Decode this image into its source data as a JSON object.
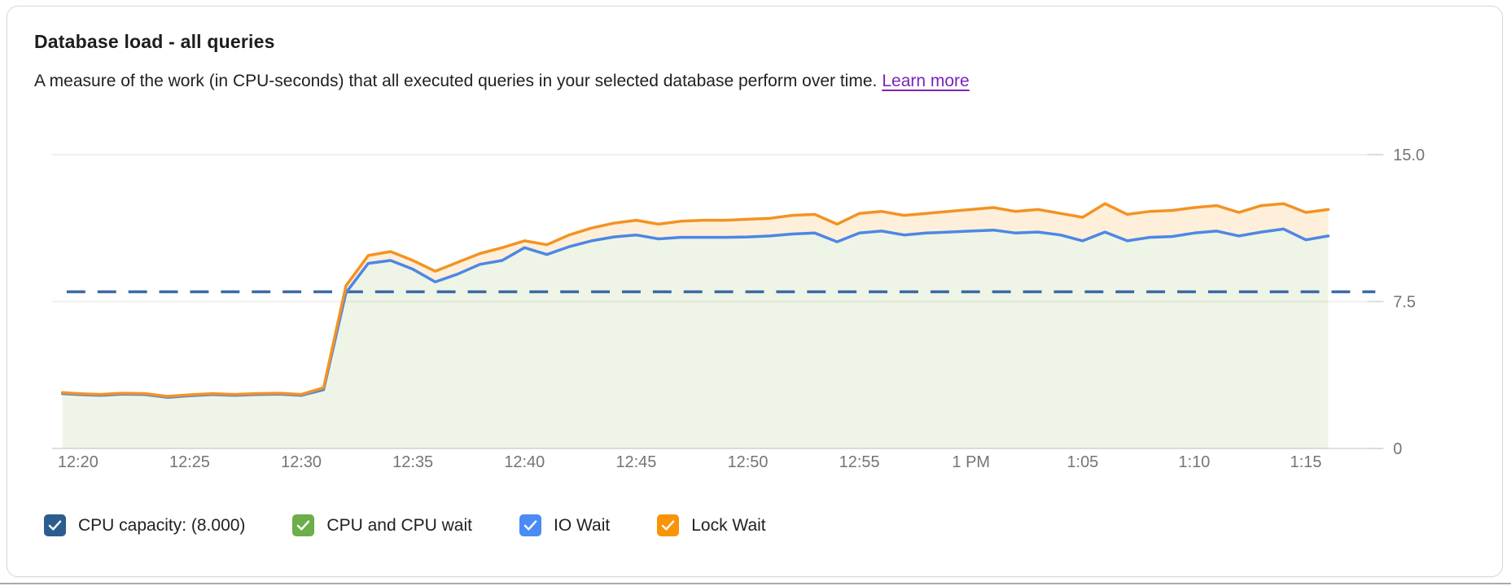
{
  "card": {
    "title": "Database load - all queries",
    "subtitle": "A measure of the work (in CPU-seconds) that all executed queries in your selected database perform over time.",
    "learn_more_label": "Learn more"
  },
  "colors": {
    "link_purple": "#7b24b8",
    "capacity_dash": "#3b69a5",
    "io_wait_line": "#4d87e4",
    "lock_wait_line": "#f39322",
    "cpu_area_fill": "rgba(124,179,66,0.13)",
    "lock_band_fill": "rgba(248,148,6,0.15)",
    "gridline": "#efefef",
    "baseline": "#e0e0e0",
    "tick_mark": "#dcdcdc",
    "axis_text": "#757575"
  },
  "legend": {
    "items": [
      {
        "label": "CPU capacity: (8.000)",
        "color": "#2c5d8f"
      },
      {
        "label": "CPU and CPU wait",
        "color": "#6cae49"
      },
      {
        "label": "IO Wait",
        "color": "#4b8bf5"
      },
      {
        "label": "Lock Wait",
        "color": "#f89406"
      }
    ]
  },
  "chart_data": {
    "type": "area",
    "title": "Database load - all queries",
    "ylabel": "",
    "xlabel": "",
    "ylim": [
      0,
      15
    ],
    "grid": true,
    "legend_position": "bottom",
    "stacked_cumulative": true,
    "note": "Lines are cumulative stack tops; the green 'CPU and CPU wait' area top edge coincides with (is hidden under) the IO Wait line because IO wait is ~0.",
    "y_ticks": [
      {
        "label": "15.0",
        "value": 15
      },
      {
        "label": "7.5",
        "value": 7.5
      },
      {
        "label": "0",
        "value": 0
      }
    ],
    "x_ticks": [
      {
        "label": "12:20",
        "minute": 20
      },
      {
        "label": "12:25",
        "minute": 25
      },
      {
        "label": "12:30",
        "minute": 30
      },
      {
        "label": "12:35",
        "minute": 35
      },
      {
        "label": "12:40",
        "minute": 40
      },
      {
        "label": "12:45",
        "minute": 45
      },
      {
        "label": "12:50",
        "minute": 50
      },
      {
        "label": "12:55",
        "minute": 55
      },
      {
        "label": "1 PM",
        "minute": 60
      },
      {
        "label": "1:05",
        "minute": 65
      },
      {
        "label": "1:10",
        "minute": 70
      },
      {
        "label": "1:15",
        "minute": 75
      }
    ],
    "capacity_line": {
      "label": "CPU capacity",
      "value": 8.0,
      "style": "dashed"
    },
    "x_minutes": [
      19.3,
      20,
      21,
      22,
      23,
      24,
      25,
      26,
      27,
      28,
      29,
      30,
      31,
      32,
      33,
      34,
      35,
      36,
      37,
      38,
      39,
      40,
      41,
      42,
      43,
      44,
      45,
      46,
      47,
      48,
      49,
      50,
      51,
      52,
      53,
      54,
      55,
      56,
      57,
      58,
      59,
      60,
      61,
      62,
      63,
      64,
      65,
      66,
      67,
      68,
      69,
      70,
      71,
      72,
      73,
      74,
      75,
      76
    ],
    "series": [
      {
        "name": "IO Wait (stack top)",
        "color": "#4d87e4",
        "values": [
          2.8,
          2.75,
          2.71,
          2.77,
          2.75,
          2.61,
          2.69,
          2.75,
          2.71,
          2.75,
          2.77,
          2.71,
          3.0,
          7.95,
          9.45,
          9.6,
          9.15,
          8.5,
          8.9,
          9.4,
          9.6,
          10.25,
          9.9,
          10.3,
          10.6,
          10.8,
          10.9,
          10.7,
          10.78,
          10.78,
          10.78,
          10.8,
          10.85,
          10.95,
          11.0,
          10.55,
          11.0,
          11.1,
          10.9,
          11.0,
          11.05,
          11.1,
          11.15,
          11.0,
          11.05,
          10.9,
          10.6,
          11.05,
          10.6,
          10.78,
          10.82,
          11.0,
          11.1,
          10.85,
          11.05,
          11.2,
          10.65,
          10.85
        ]
      },
      {
        "name": "Lock Wait (stack top)",
        "color": "#f39322",
        "values": [
          2.85,
          2.8,
          2.76,
          2.82,
          2.8,
          2.66,
          2.74,
          2.8,
          2.76,
          2.8,
          2.82,
          2.76,
          3.1,
          8.3,
          9.85,
          10.05,
          9.6,
          9.05,
          9.5,
          9.95,
          10.25,
          10.6,
          10.4,
          10.9,
          11.25,
          11.5,
          11.65,
          11.45,
          11.6,
          11.65,
          11.65,
          11.7,
          11.75,
          11.9,
          11.95,
          11.45,
          12.0,
          12.1,
          11.9,
          12.0,
          12.1,
          12.2,
          12.3,
          12.1,
          12.2,
          12.0,
          11.8,
          12.5,
          11.95,
          12.1,
          12.15,
          12.3,
          12.4,
          12.05,
          12.4,
          12.5,
          12.05,
          12.2
        ]
      }
    ]
  }
}
